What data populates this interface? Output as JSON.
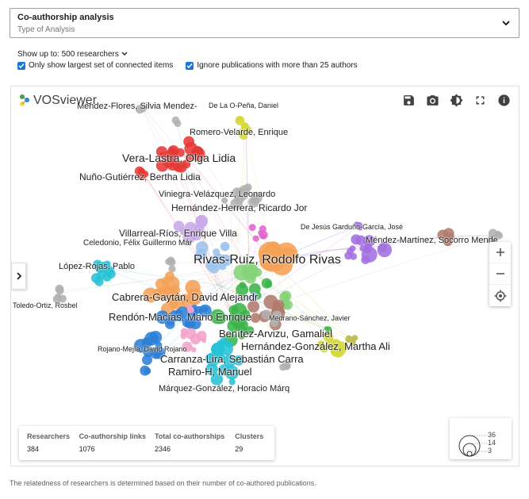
{
  "analysis_select": {
    "value": "Co-authorship analysis",
    "label": "Type of Analysis"
  },
  "show_up_to": {
    "label": "Show up to:",
    "value": "500 researchers"
  },
  "options": {
    "largest_set": "Only show largest set of connected items",
    "ignore_pubs": "Ignore publications with more than 25 authors"
  },
  "logo": {
    "text": "VOSviewer"
  },
  "labels": [
    "Méndez-Flores, Silvia Mendez-",
    "De La O-Peña, Daniel",
    "Romero-Velarde, Enrique",
    "Vera-Lastra, Olga Lidia",
    "Nuño-Gutiérrez, Bertha Lidia",
    "Viniegra-Velázquez, Leonardo",
    "Hernández-Herrera, Ricardo Jor",
    "De Jesús Garduño-García, José",
    "Villarreal-Ríos, Enrique Villa",
    "Méndez-Martínez, Socorro Mende",
    "Celedonio, Félix Guillermo Már",
    "Rivas-Ruiz, Rodolfo Rivas",
    "López-Rojas, Pablo",
    "Cabrera-Gaytán, David Alejandr",
    "Toledo-Ortiz, Rosbel",
    "Medrano-Sánchez, Javier",
    "Rendón-Macías, Mario Enrique",
    "Benítez-Arvizu, Gamaliel",
    "Hernández-González, Martha Ali",
    "Rojano-Mejía, David Rojano",
    "Carranza-Lira, Sebastián Carra",
    "Ramiro-H, Manuel",
    "Márquez-González, Horacio Márq"
  ],
  "stats": [
    {
      "header": "Researchers",
      "value": "384"
    },
    {
      "header": "Co-authorship links",
      "value": "1076"
    },
    {
      "header": "Total co-authorships",
      "value": "2346"
    },
    {
      "header": "Clusters",
      "value": "29"
    }
  ],
  "legend": {
    "values": [
      "36",
      "14",
      "3"
    ]
  },
  "footer": "The relatedness of researchers is determined based on their number of co-authored publications.",
  "colors": {
    "red": "#e53935",
    "grey": "#b0b0b0",
    "yellow": "#d4d93a",
    "orange": "#f5a156",
    "purple": "#a36fe0",
    "blue": "#2c7fd6",
    "green": "#3bb54a",
    "brown": "#b07a6d",
    "cyan": "#26c1d6",
    "pink": "#f2a0c8",
    "lightblue": "#9cc3ee",
    "lavender": "#c9a8e8",
    "lightgreen": "#86d37a",
    "magenta": "#e065d0",
    "olive": "#b7b83c",
    "accent": "#1976d2"
  }
}
